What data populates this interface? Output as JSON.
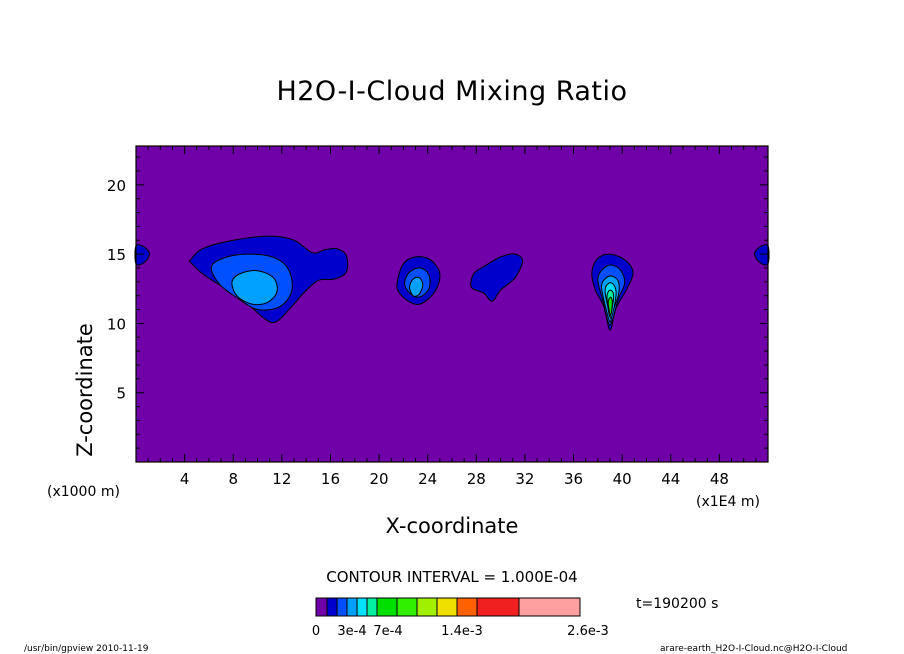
{
  "chart_data": {
    "type": "contour",
    "title": "H2O-I-Cloud Mixing Ratio",
    "xlabel": "X-coordinate",
    "ylabel": "Z-coordinate",
    "x_unit_left": "(x1000 m)",
    "x_unit_right": "(x1E4 m)",
    "xlim": [
      0,
      52
    ],
    "ylim": [
      0,
      22.8
    ],
    "x_ticks": [
      4,
      8,
      12,
      16,
      20,
      24,
      28,
      32,
      36,
      40,
      44,
      48
    ],
    "y_ticks": [
      5,
      10,
      15,
      20
    ],
    "background_color": "#7000a8",
    "contour_interval": "CONTOUR INTERVAL = 1.000E-04",
    "time_label": "t=190200 s",
    "levels": [
      0,
      0.0001,
      0.0002,
      0.0003,
      0.0004,
      0.0005,
      0.0006,
      0.0007,
      0.001,
      0.0014,
      0.0018,
      0.0022,
      0.0026
    ],
    "colorbar": {
      "colors": [
        "#7000a8",
        "#0000cc",
        "#0050ff",
        "#00a0ff",
        "#00e0ff",
        "#00f0a0",
        "#00e000",
        "#30f000",
        "#a0f000",
        "#f0e000",
        "#ff6000",
        "#f02020",
        "#ffa0a0"
      ],
      "labels": [
        "0",
        "3e-4",
        "7e-4",
        "1.4e-3",
        "2.6e-3"
      ]
    },
    "cloud_regions": [
      {
        "x_range": [
          4.5,
          17.5
        ],
        "z_range": [
          10,
          16.3
        ],
        "max_level": 0.0003
      },
      {
        "x_range": [
          21.5,
          25
        ],
        "z_range": [
          11.3,
          14.8
        ],
        "max_level": 0.0003
      },
      {
        "x_range": [
          27.5,
          31.5
        ],
        "z_range": [
          11.5,
          15
        ],
        "max_level": 0.0001
      },
      {
        "x_range": [
          37.5,
          41
        ],
        "z_range": [
          9.5,
          15
        ],
        "max_level": 0.0007
      },
      {
        "x_range": [
          0,
          1.2
        ],
        "z_range": [
          14.3,
          15.6
        ],
        "max_level": 0.0001
      },
      {
        "x_range": [
          50.8,
          52
        ],
        "z_range": [
          14.3,
          15.6
        ],
        "max_level": 0.0001
      }
    ]
  },
  "footer": {
    "left": "/usr/bin/gpview  2010-11-19",
    "right": "arare-earth_H2O-I-Cloud.nc@H2O-I-Cloud"
  }
}
